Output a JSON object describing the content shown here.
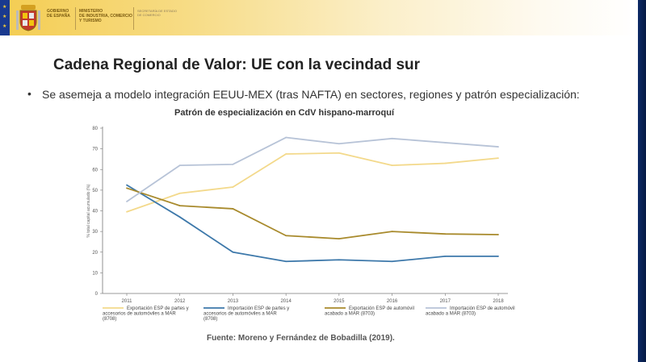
{
  "header": {
    "gov_lines": [
      "GOBIERNO",
      "DE ESPAÑA"
    ],
    "ministry_lines": [
      "MINISTERIO",
      "DE INDUSTRIA, COMERCIO",
      "Y TURISMO"
    ],
    "secretariat_lines": [
      "SECRETARÍA DE ESTADO",
      "DE COMERCIO"
    ]
  },
  "slide": {
    "title": "Cadena Regional de Valor: UE con la vecindad sur",
    "bullet": "Se asemeja a modelo integración EEUU-MEX (tras NAFTA) en sectores, regiones y patrón especialización:",
    "source": "Fuente: Moreno y Fernández de Bobadilla (2019)."
  },
  "colors": {
    "header_gold": "#f4cd52",
    "eu_blue": "#1a3a8f",
    "frame_navy": "#0a1f4a"
  },
  "chart_data": {
    "type": "line",
    "title": "Patrón de especialización en CdV hispano-marroquí",
    "ylabel": "% total capital acumulado (%)",
    "xlabel": "",
    "ylim": [
      0,
      80
    ],
    "yticks": [
      0,
      10,
      20,
      30,
      40,
      50,
      60,
      70,
      80
    ],
    "x": [
      "2011",
      "2012",
      "2013",
      "2014",
      "2015",
      "2016",
      "2017",
      "2018"
    ],
    "grid": false,
    "legend_position": "bottom",
    "series": [
      {
        "name": "Exportación ESP de partes y accesorios de automóviles a MAR (8708)",
        "color": "#f3d98b",
        "values": [
          39.5,
          48.5,
          51.5,
          67.5,
          68,
          62,
          63,
          65.5
        ]
      },
      {
        "name": "Importación ESP de partes y accesorios de automóviles a MAR (8708)",
        "color": "#3d78aa",
        "values": [
          52.5,
          37,
          20,
          15.5,
          16.3,
          15.5,
          18,
          18
        ]
      },
      {
        "name": "Exportación ESP de automóvil acabado a MAR (8703)",
        "color": "#a88a2c",
        "values": [
          51,
          42.5,
          41,
          28,
          26.5,
          30,
          28.8,
          28.5
        ]
      },
      {
        "name": "Importación ESP de automóvil acabado a MAR (8703)",
        "color": "#b7c3d7",
        "values": [
          44.5,
          62,
          62.5,
          75.5,
          72.5,
          75,
          73,
          71
        ]
      }
    ]
  }
}
